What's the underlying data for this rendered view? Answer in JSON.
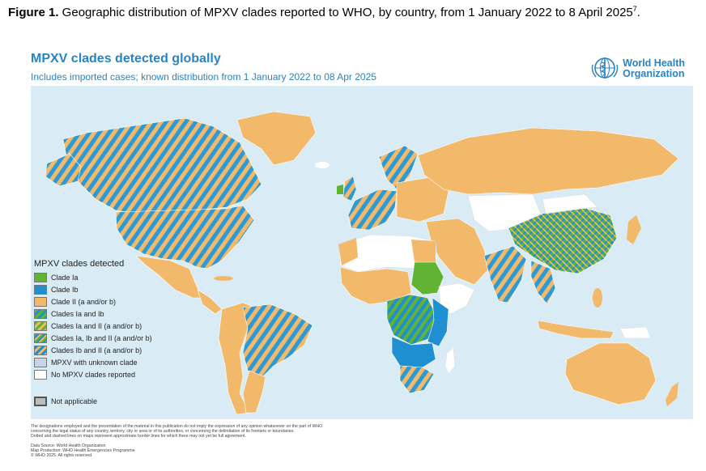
{
  "caption": {
    "label": "Figure 1.",
    "text": " Geographic distribution of MPXV clades reported to WHO, by country, from 1 January 2022 to 8 April 2025",
    "superscript": "7",
    "end": "."
  },
  "figure": {
    "title": "MPXV clades detected globally",
    "subtitle": "Includes imported cases; known distribution from 1 January 2022 to 08 Apr 2025",
    "organization_line1": "World Health",
    "organization_line2": "Organization",
    "logo_icon": "who-emblem-icon"
  },
  "legend": {
    "title": "MPXV clades detected",
    "items": [
      {
        "label": "Clade Ia",
        "swatch": "solid",
        "color": "#61b432"
      },
      {
        "label": "Clade Ib",
        "swatch": "solid",
        "color": "#1f8fd1"
      },
      {
        "label": "Clade II (a and/or b)",
        "swatch": "solid",
        "color": "#f3b96b"
      },
      {
        "label": "Clades Ia and Ib",
        "swatch": "stripe-ia-ib",
        "color": "#3a9b6b"
      },
      {
        "label": "Clades Ia and II (a and/or b)",
        "swatch": "stripe-ia-ii",
        "color": "#61b432"
      },
      {
        "label": "Clades Ia, Ib and II (a and/or b)",
        "swatch": "stripe-all",
        "color": "#61b432"
      },
      {
        "label": "Clades Ib and II (a and/or b)",
        "swatch": "stripe-ib-ii",
        "color": "#1f8fd1"
      },
      {
        "label": "MPXV with unknown clade",
        "swatch": "solid",
        "color": "#c7d4e6"
      },
      {
        "label": "No MPXV clades reported",
        "swatch": "solid",
        "color": "#ffffff"
      }
    ],
    "not_applicable": {
      "label": "Not applicable",
      "color": "#bdbdbd"
    }
  },
  "colors": {
    "ocean": "#d9ecf5",
    "clade_ii": "#f3b96b",
    "clade_ia": "#61b432",
    "clade_ib": "#1f8fd1",
    "none": "#ffffff",
    "accent": "#2a83c2"
  },
  "disclaimer": [
    "The designations employed and the presentation of the material in this publication do not imply the expression of any opinion whatsoever on the part of WHO",
    "concerning the legal status of any country, territory, city or area or of its authorities, or concerning the delimitation of its frontiers or boundaries.",
    "Dotted and dashed lines on maps represent approximate border lines for which there may not yet be full agreement."
  ],
  "source": [
    "Data Source: World Health Organization",
    "Map Production: WHO Health Emergencies Programme",
    "© WHO 2025. All rights reserved."
  ]
}
